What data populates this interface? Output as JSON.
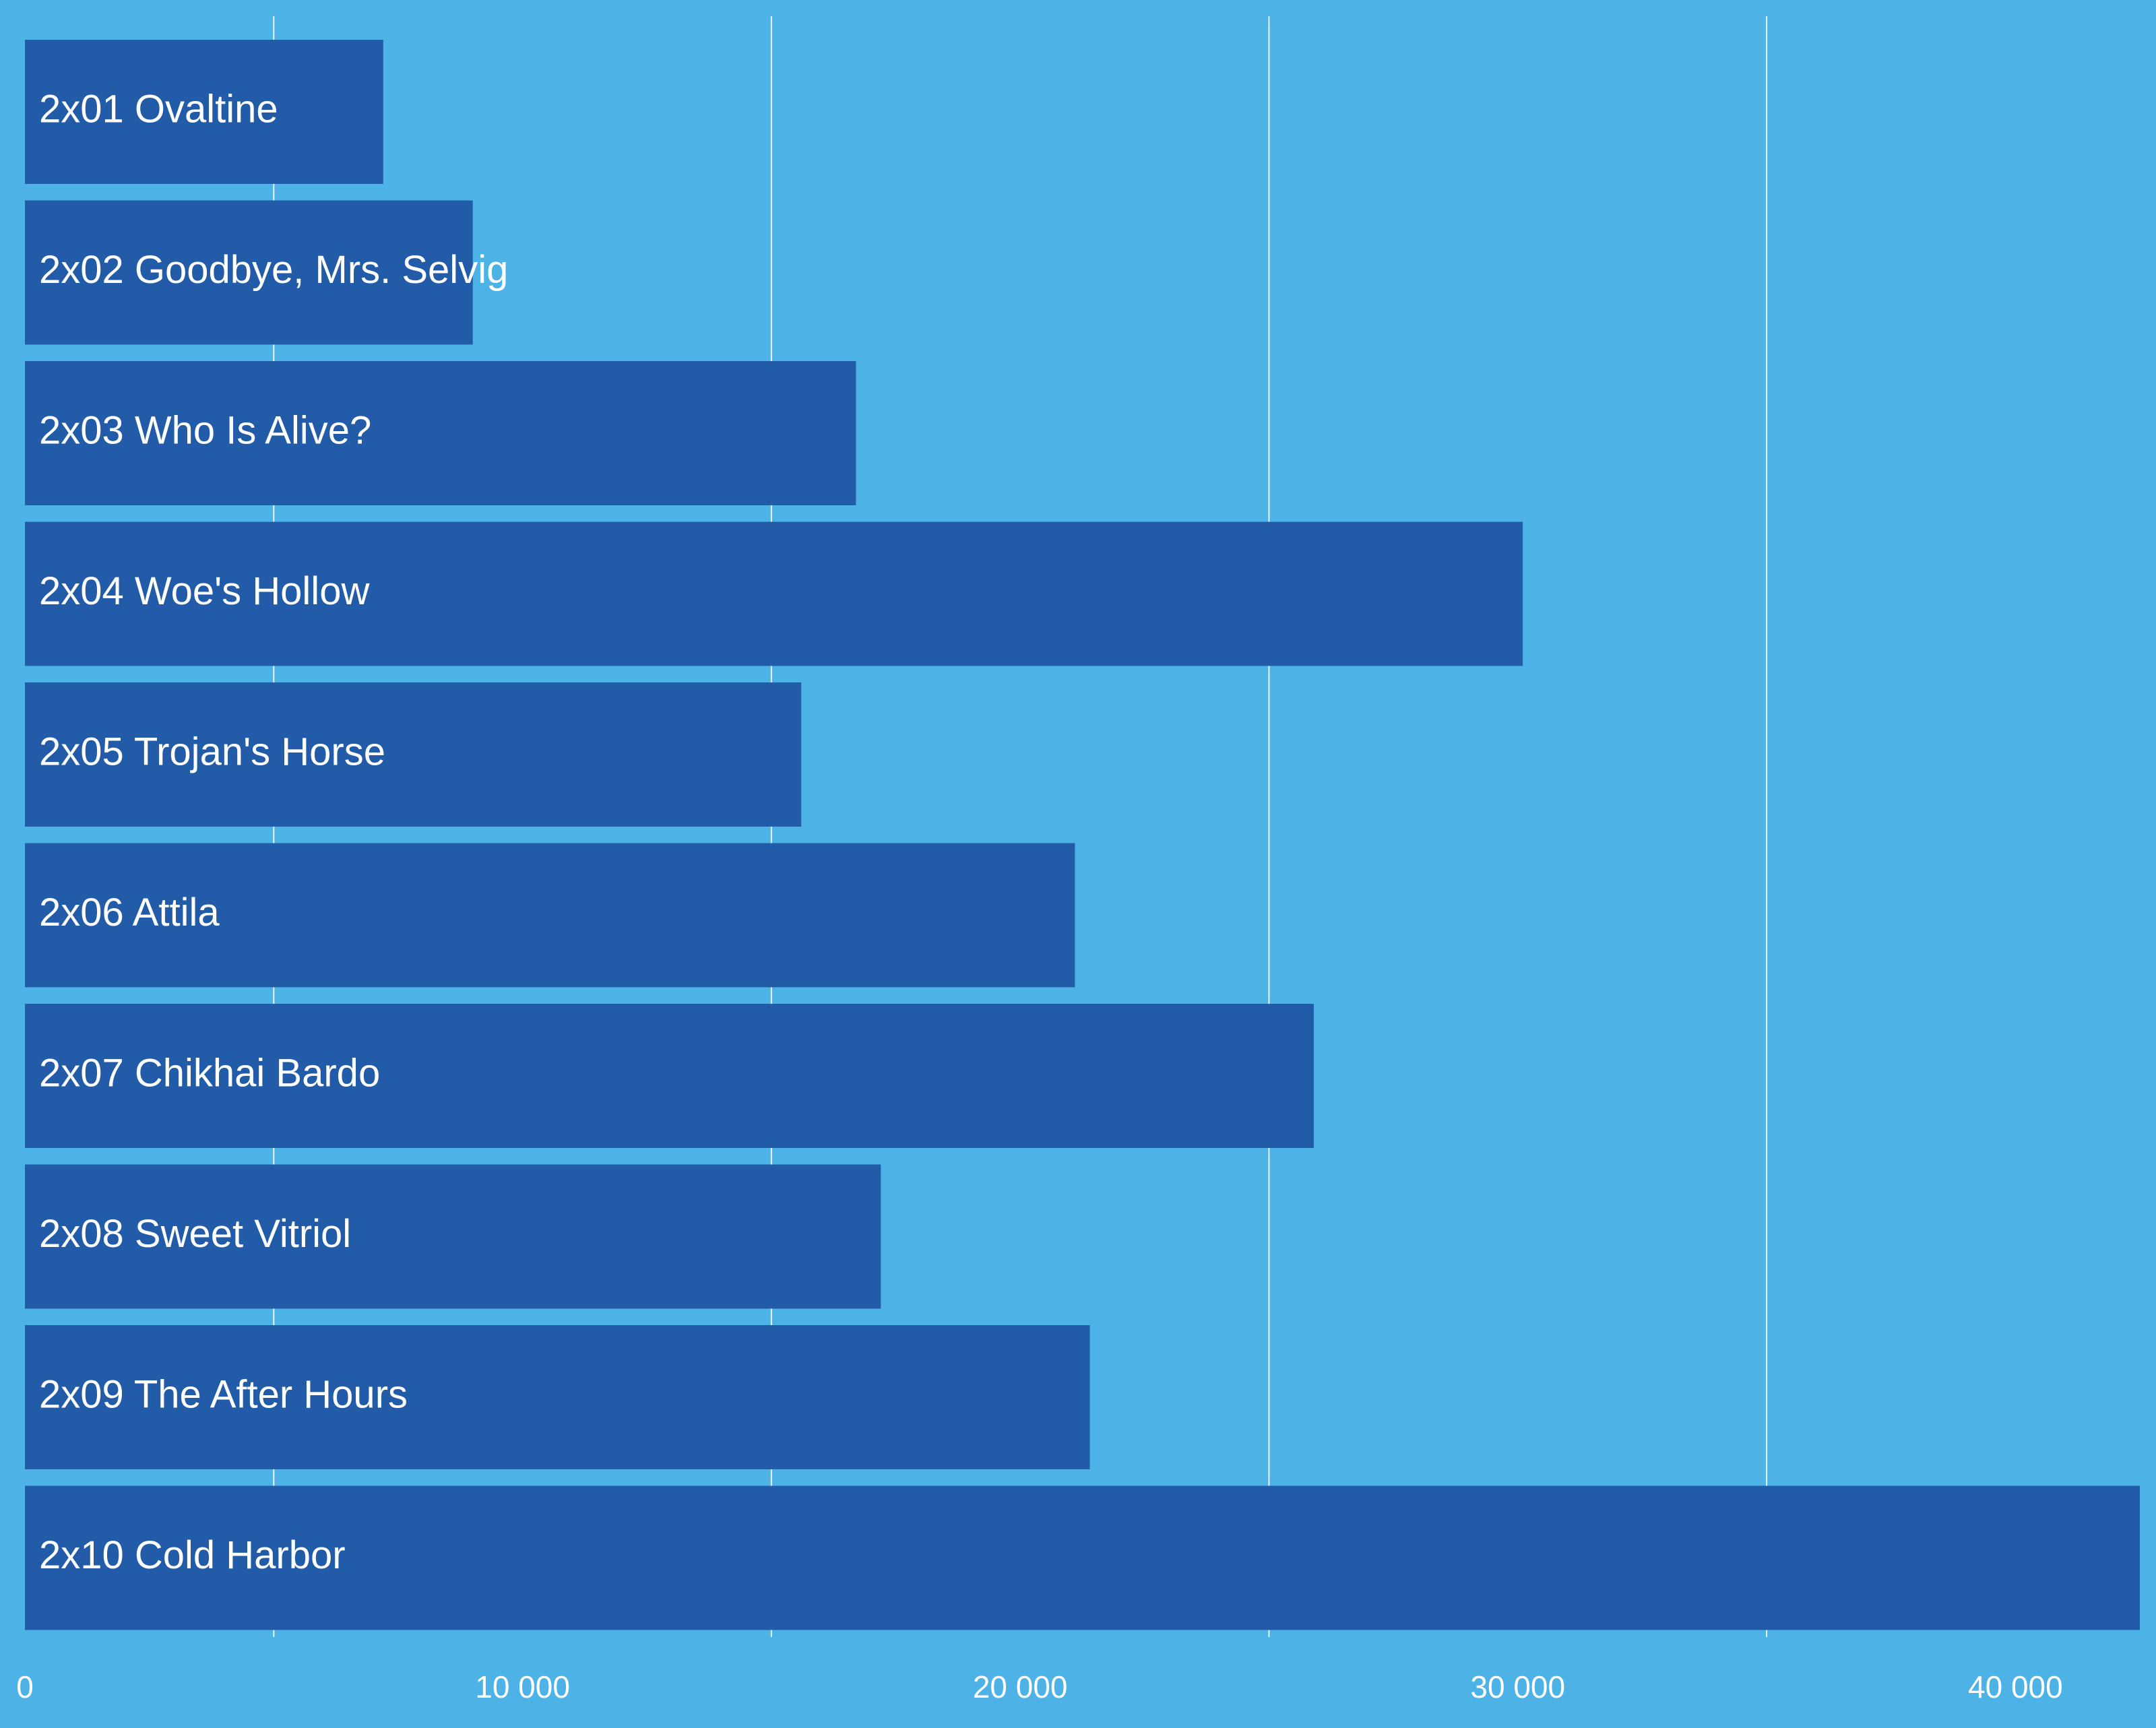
{
  "colors": {
    "background": "#4db3e6",
    "bar": "#225ca8",
    "gridline": "#e6f4fc",
    "text": "#ffffff"
  },
  "chart_data": {
    "type": "bar",
    "orientation": "horizontal",
    "categories": [
      "2x01 Ovaltine",
      "2x02 Goodbye, Mrs. Selvig",
      "2x03 Who Is Alive?",
      "2x04 Woe's Hollow",
      "2x05 Trojan's Horse",
      "2x06 Attila",
      "2x07 Chikhai Bardo",
      "2x08 Sweet Vitriol",
      "2x09 The After Hours",
      "2x10 Cold Harbor"
    ],
    "values": [
      7200,
      9000,
      16700,
      30100,
      15600,
      21100,
      25900,
      17200,
      21400,
      42500
    ],
    "xlim": [
      0,
      42500
    ],
    "xticks": [
      0,
      10000,
      20000,
      30000,
      40000
    ],
    "xtick_labels": [
      "0",
      "10 000",
      "20 000",
      "30 000",
      "40 000"
    ],
    "grid_x_values": [
      5000,
      15000,
      25000,
      35000
    ],
    "title": "",
    "xlabel": "",
    "ylabel": "",
    "grid": true,
    "legend": false
  }
}
